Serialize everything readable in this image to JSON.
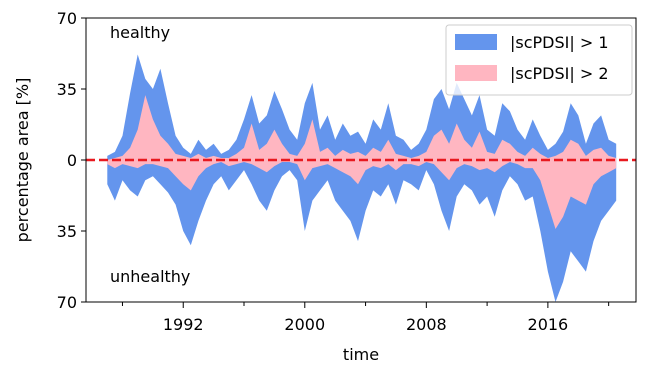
{
  "chart_data": {
    "type": "area",
    "xlabel": "time",
    "ylabel": "percentage area [%]",
    "x_ticks": [
      1992,
      2000,
      2008,
      2016
    ],
    "y_ticks": [
      {
        "value": 70,
        "label": "70"
      },
      {
        "value": 35,
        "label": "35"
      },
      {
        "value": 0,
        "label": "0"
      },
      {
        "value": -35,
        "label": "35"
      },
      {
        "value": -70,
        "label": "70"
      }
    ],
    "xlim": [
      1985.6,
      2021.8
    ],
    "ylim": [
      -70,
      70
    ],
    "annotations": {
      "top": "healthy",
      "bottom": "unhealthy"
    },
    "reference_line": {
      "value": 0,
      "color": "#e8191f",
      "style": "dashed"
    },
    "legend": {
      "position": "top-right"
    },
    "series": [
      {
        "name": "|scPDSI| > 1",
        "color": "#6495ed",
        "x": [
          1987.0,
          1987.5,
          1988.0,
          1988.5,
          1989.0,
          1989.5,
          1990.0,
          1990.5,
          1991.0,
          1991.5,
          1992.0,
          1992.5,
          1993.0,
          1993.5,
          1994.0,
          1994.5,
          1995.0,
          1995.5,
          1996.0,
          1996.5,
          1997.0,
          1997.5,
          1998.0,
          1998.5,
          1999.0,
          1999.5,
          2000.0,
          2000.5,
          2001.0,
          2001.5,
          2002.0,
          2002.5,
          2003.0,
          2003.5,
          2004.0,
          2004.5,
          2005.0,
          2005.5,
          2006.0,
          2006.5,
          2007.0,
          2007.5,
          2008.0,
          2008.5,
          2009.0,
          2009.5,
          2010.0,
          2010.5,
          2011.0,
          2011.5,
          2012.0,
          2012.5,
          2013.0,
          2013.5,
          2014.0,
          2014.5,
          2015.0,
          2015.5,
          2016.0,
          2016.5,
          2017.0,
          2017.5,
          2018.0,
          2018.5,
          2019.0,
          2019.5,
          2020.0,
          2020.5
        ],
        "upper": [
          2,
          4,
          12,
          33,
          52,
          40,
          35,
          45,
          28,
          12,
          6,
          3,
          10,
          5,
          8,
          3,
          5,
          10,
          20,
          32,
          18,
          22,
          34,
          25,
          15,
          10,
          28,
          38,
          15,
          22,
          10,
          18,
          12,
          14,
          8,
          20,
          15,
          28,
          12,
          10,
          5,
          8,
          15,
          30,
          35,
          25,
          38,
          30,
          22,
          32,
          15,
          12,
          28,
          24,
          15,
          10,
          20,
          12,
          5,
          8,
          14,
          28,
          22,
          8,
          18,
          22,
          10,
          8
        ],
        "lower": [
          -12,
          -20,
          -10,
          -15,
          -18,
          -10,
          -8,
          -12,
          -16,
          -22,
          -35,
          -42,
          -30,
          -20,
          -12,
          -8,
          -15,
          -10,
          -5,
          -12,
          -20,
          -25,
          -15,
          -8,
          -5,
          -10,
          -35,
          -20,
          -15,
          -10,
          -20,
          -25,
          -30,
          -40,
          -25,
          -15,
          -18,
          -12,
          -22,
          -10,
          -12,
          -15,
          -5,
          -12,
          -25,
          -35,
          -18,
          -12,
          -15,
          -22,
          -18,
          -28,
          -15,
          -8,
          -12,
          -20,
          -18,
          -35,
          -55,
          -70,
          -60,
          -45,
          -50,
          -55,
          -40,
          -30,
          -25,
          -20
        ]
      },
      {
        "name": "|scPDSI| > 2",
        "color": "#ffb6c1",
        "x": [
          1987.0,
          1987.5,
          1988.0,
          1988.5,
          1989.0,
          1989.5,
          1990.0,
          1990.5,
          1991.0,
          1991.5,
          1992.0,
          1992.5,
          1993.0,
          1993.5,
          1994.0,
          1994.5,
          1995.0,
          1995.5,
          1996.0,
          1996.5,
          1997.0,
          1997.5,
          1998.0,
          1998.5,
          1999.0,
          1999.5,
          2000.0,
          2000.5,
          2001.0,
          2001.5,
          2002.0,
          2002.5,
          2003.0,
          2003.5,
          2004.0,
          2004.5,
          2005.0,
          2005.5,
          2006.0,
          2006.5,
          2007.0,
          2007.5,
          2008.0,
          2008.5,
          2009.0,
          2009.5,
          2010.0,
          2010.5,
          2011.0,
          2011.5,
          2012.0,
          2012.5,
          2013.0,
          2013.5,
          2014.0,
          2014.5,
          2015.0,
          2015.5,
          2016.0,
          2016.5,
          2017.0,
          2017.5,
          2018.0,
          2018.5,
          2019.0,
          2019.5,
          2020.0,
          2020.5
        ],
        "upper": [
          0,
          1,
          2,
          6,
          15,
          32,
          20,
          12,
          8,
          3,
          2,
          1,
          3,
          1,
          2,
          1,
          1,
          3,
          6,
          18,
          5,
          8,
          15,
          8,
          3,
          2,
          8,
          20,
          4,
          6,
          2,
          5,
          3,
          4,
          2,
          6,
          4,
          10,
          3,
          2,
          1,
          2,
          4,
          12,
          15,
          8,
          18,
          10,
          6,
          14,
          4,
          3,
          10,
          8,
          4,
          2,
          6,
          3,
          1,
          2,
          4,
          10,
          8,
          2,
          5,
          6,
          2,
          1
        ],
        "lower": [
          -2,
          -4,
          -2,
          -3,
          -4,
          -2,
          -2,
          -3,
          -4,
          -8,
          -12,
          -15,
          -8,
          -4,
          -2,
          -1,
          -3,
          -2,
          -1,
          -2,
          -4,
          -6,
          -3,
          -1,
          -1,
          -2,
          -10,
          -4,
          -3,
          -2,
          -4,
          -6,
          -8,
          -12,
          -5,
          -3,
          -4,
          -2,
          -5,
          -2,
          -2,
          -3,
          -1,
          -2,
          -6,
          -10,
          -4,
          -2,
          -3,
          -5,
          -4,
          -6,
          -3,
          -1,
          -2,
          -4,
          -4,
          -10,
          -22,
          -34,
          -28,
          -18,
          -20,
          -22,
          -12,
          -8,
          -6,
          -4
        ]
      }
    ]
  }
}
